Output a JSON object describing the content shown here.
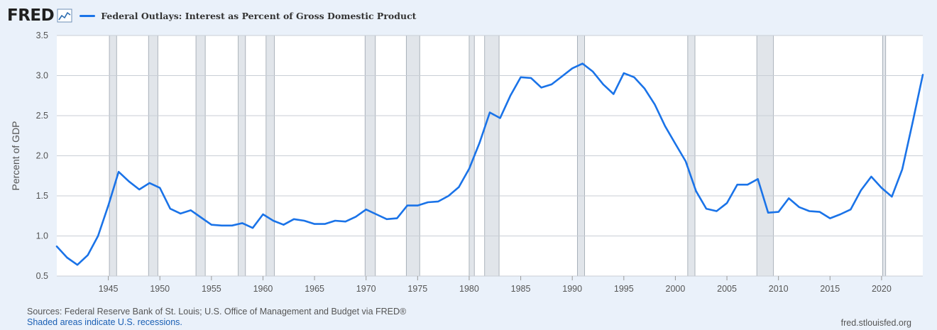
{
  "header": {
    "logo_text": "FRED",
    "logo_icon": "chart-line-icon",
    "series_color": "#1a73e8"
  },
  "chart_data": {
    "type": "line",
    "title": "Federal Outlays: Interest as Percent of Gross Domestic Product",
    "ylabel": "Percent of GDP",
    "xlabel": "",
    "xlim": [
      1940,
      2024
    ],
    "ylim": [
      0.5,
      3.5
    ],
    "xticks": [
      1945,
      1950,
      1955,
      1960,
      1965,
      1970,
      1975,
      1980,
      1985,
      1990,
      1995,
      2000,
      2005,
      2010,
      2015,
      2020
    ],
    "yticks": [
      "0.5",
      "1.0",
      "1.5",
      "2.0",
      "2.5",
      "3.0",
      "3.5"
    ],
    "grid": "horizontal",
    "legend": "top-left",
    "series": [
      {
        "name": "Federal Outlays: Interest as Percent of Gross Domestic Product",
        "color": "#1a73e8",
        "x": [
          1940,
          1941,
          1942,
          1943,
          1944,
          1945,
          1946,
          1947,
          1948,
          1949,
          1950,
          1951,
          1952,
          1953,
          1954,
          1955,
          1956,
          1957,
          1958,
          1959,
          1960,
          1961,
          1962,
          1963,
          1964,
          1965,
          1966,
          1967,
          1968,
          1969,
          1970,
          1971,
          1972,
          1973,
          1974,
          1975,
          1976,
          1977,
          1978,
          1979,
          1980,
          1981,
          1982,
          1983,
          1984,
          1985,
          1986,
          1987,
          1988,
          1989,
          1990,
          1991,
          1992,
          1993,
          1994,
          1995,
          1996,
          1997,
          1998,
          1999,
          2000,
          2001,
          2002,
          2003,
          2004,
          2005,
          2006,
          2007,
          2008,
          2009,
          2010,
          2011,
          2012,
          2013,
          2014,
          2015,
          2016,
          2017,
          2018,
          2019,
          2020,
          2021,
          2022,
          2023,
          2024
        ],
        "values": [
          0.87,
          0.73,
          0.64,
          0.76,
          1.0,
          1.38,
          1.8,
          1.68,
          1.58,
          1.66,
          1.6,
          1.34,
          1.28,
          1.32,
          1.23,
          1.14,
          1.13,
          1.13,
          1.16,
          1.1,
          1.27,
          1.19,
          1.14,
          1.21,
          1.19,
          1.15,
          1.15,
          1.19,
          1.18,
          1.24,
          1.33,
          1.27,
          1.21,
          1.22,
          1.38,
          1.38,
          1.42,
          1.43,
          1.5,
          1.61,
          1.84,
          2.16,
          2.54,
          2.47,
          2.75,
          2.98,
          2.97,
          2.85,
          2.89,
          2.99,
          3.09,
          3.15,
          3.05,
          2.89,
          2.77,
          3.03,
          2.98,
          2.84,
          2.64,
          2.37,
          2.15,
          1.93,
          1.56,
          1.34,
          1.31,
          1.41,
          1.64,
          1.64,
          1.71,
          1.29,
          1.3,
          1.47,
          1.36,
          1.31,
          1.3,
          1.22,
          1.27,
          1.33,
          1.57,
          1.74,
          1.6,
          1.49,
          1.83,
          2.41,
          3.01
        ]
      }
    ],
    "recessions": [
      [
        1945.1,
        1945.8
      ],
      [
        1948.9,
        1949.8
      ],
      [
        1953.5,
        1954.4
      ],
      [
        1957.6,
        1958.3
      ],
      [
        1960.3,
        1961.1
      ],
      [
        1969.9,
        1970.9
      ],
      [
        1973.9,
        1975.2
      ],
      [
        1980.0,
        1980.5
      ],
      [
        1981.5,
        1982.9
      ],
      [
        1990.5,
        1991.2
      ],
      [
        2001.2,
        2001.9
      ],
      [
        2007.9,
        2009.5
      ],
      [
        2020.1,
        2020.4
      ]
    ]
  },
  "footer": {
    "sources": "Sources: Federal Reserve Bank of St. Louis; U.S. Office of Management and Budget via FRED®",
    "note": "Shaded areas indicate U.S. recessions.",
    "site": "fred.stlouisfed.org"
  }
}
